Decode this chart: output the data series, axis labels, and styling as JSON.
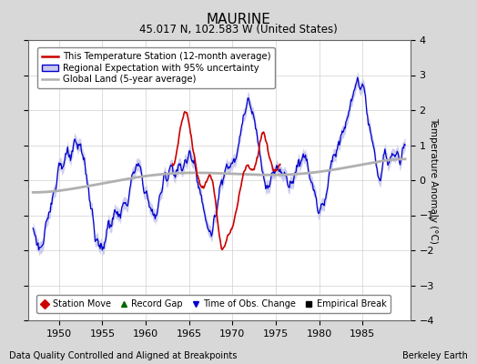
{
  "title": "MAURINE",
  "subtitle": "45.017 N, 102.583 W (United States)",
  "xlabel_bottom": "Data Quality Controlled and Aligned at Breakpoints",
  "xlabel_right": "Berkeley Earth",
  "ylabel": "Temperature Anomaly (°C)",
  "xlim": [
    1946.5,
    1990.5
  ],
  "ylim": [
    -4,
    4
  ],
  "yticks": [
    -4,
    -3,
    -2,
    -1,
    0,
    1,
    2,
    3,
    4
  ],
  "xticks": [
    1950,
    1955,
    1960,
    1965,
    1970,
    1975,
    1980,
    1985
  ],
  "bg_color": "#d8d8d8",
  "plot_bg_color": "#ffffff",
  "red_color": "#cc0000",
  "blue_color": "#0000cc",
  "blue_fill_color": "#c8c8ee",
  "gray_color": "#b0b0b0",
  "legend_entries": [
    "This Temperature Station (12-month average)",
    "Regional Expectation with 95% uncertainty",
    "Global Land (5-year average)"
  ],
  "marker_legend": [
    {
      "marker": "D",
      "color": "#cc0000",
      "label": "Station Move"
    },
    {
      "marker": "^",
      "color": "#006600",
      "label": "Record Gap"
    },
    {
      "marker": "v",
      "color": "#0000cc",
      "label": "Time of Obs. Change"
    },
    {
      "marker": "s",
      "color": "#000000",
      "label": "Empirical Break"
    }
  ]
}
